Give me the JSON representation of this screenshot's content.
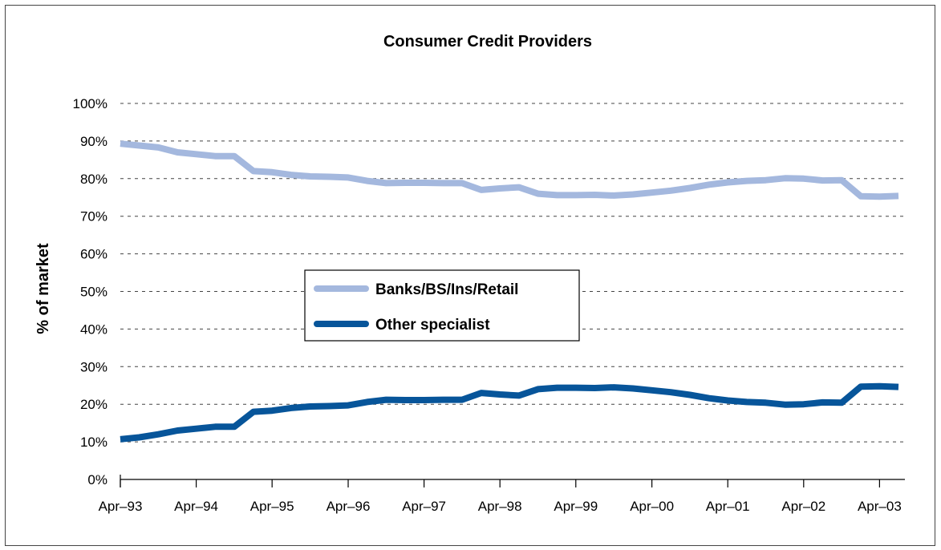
{
  "chart_data": {
    "type": "line",
    "title": "Consumer Credit Providers",
    "xlabel": "",
    "ylabel": "% of market",
    "ylim": [
      0,
      100
    ],
    "y_ticks": [
      "0%",
      "10%",
      "20%",
      "30%",
      "40%",
      "50%",
      "60%",
      "70%",
      "80%",
      "90%",
      "100%"
    ],
    "x_ticks": [
      "Apr–93",
      "Apr–94",
      "Apr–95",
      "Apr–96",
      "Apr–97",
      "Apr–98",
      "Apr–99",
      "Apr–00",
      "Apr–01",
      "Apr–02",
      "Apr–03"
    ],
    "grid": "horizontal dashed",
    "legend_position": "center-left",
    "x": [
      "1993-04",
      "1993-07",
      "1993-10",
      "1994-01",
      "1994-04",
      "1994-07",
      "1994-10",
      "1995-01",
      "1995-04",
      "1995-07",
      "1995-10",
      "1996-01",
      "1996-04",
      "1996-07",
      "1996-10",
      "1997-01",
      "1997-04",
      "1997-07",
      "1997-10",
      "1998-01",
      "1998-04",
      "1998-07",
      "1998-10",
      "1999-01",
      "1999-04",
      "1999-07",
      "1999-10",
      "2000-01",
      "2000-04",
      "2000-07",
      "2000-10",
      "2001-01",
      "2001-04",
      "2001-07",
      "2001-10",
      "2002-01",
      "2002-04",
      "2002-07",
      "2002-10",
      "2003-01",
      "2003-04",
      "2003-07"
    ],
    "series": [
      {
        "name": "Banks/BS/Ins/Retail",
        "color": "#a4b8de",
        "values": [
          89.3,
          88.8,
          88.3,
          87.0,
          86.5,
          86.0,
          86.0,
          82.0,
          81.7,
          81.0,
          80.6,
          80.5,
          80.3,
          79.4,
          78.8,
          78.9,
          78.9,
          78.8,
          78.8,
          77.0,
          77.4,
          77.7,
          76.0,
          75.6,
          75.6,
          75.7,
          75.5,
          75.8,
          76.3,
          76.8,
          77.5,
          78.4,
          79.0,
          79.4,
          79.6,
          80.1,
          80.0,
          79.5,
          79.6,
          75.3,
          75.2,
          75.4
        ]
      },
      {
        "name": "Other specialist",
        "color": "#07559a",
        "values": [
          10.7,
          11.2,
          12.0,
          13.0,
          13.5,
          14.0,
          14.0,
          18.0,
          18.3,
          19.0,
          19.4,
          19.5,
          19.7,
          20.6,
          21.2,
          21.1,
          21.1,
          21.2,
          21.2,
          23.0,
          22.6,
          22.3,
          24.0,
          24.4,
          24.4,
          24.3,
          24.5,
          24.2,
          23.7,
          23.2,
          22.5,
          21.6,
          21.0,
          20.6,
          20.4,
          19.9,
          20.0,
          20.5,
          20.4,
          24.7,
          24.8,
          24.6
        ]
      }
    ]
  }
}
